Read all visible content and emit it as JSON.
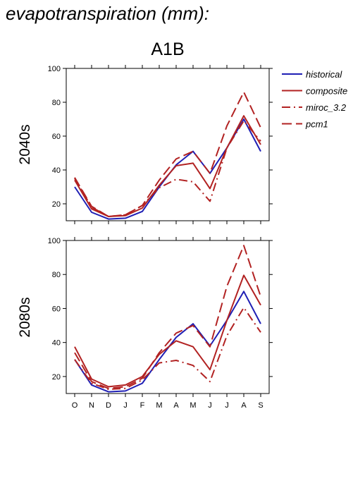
{
  "header": {
    "title": "evapotranspiration (mm):",
    "scenario": "A1B"
  },
  "colors": {
    "historical": "#1f1fb4",
    "model": "#b22222"
  },
  "chart_data": [
    {
      "type": "line",
      "panel_label": "2040s",
      "categories": [
        "O",
        "N",
        "D",
        "J",
        "F",
        "M",
        "A",
        "M",
        "J",
        "J",
        "A",
        "S"
      ],
      "ylim": [
        10,
        100
      ],
      "yticks": [
        20,
        40,
        60,
        80,
        100
      ],
      "series": [
        {
          "name": "historical",
          "style": "solid",
          "color": "#1f1fb4",
          "values": [
            30,
            15,
            11,
            11.5,
            15.5,
            30,
            43,
            51,
            38,
            53,
            70,
            51
          ]
        },
        {
          "name": "composite",
          "style": "solid",
          "color": "#b22222",
          "values": [
            34,
            17,
            12.5,
            13,
            17.5,
            31,
            42.5,
            44,
            29,
            53,
            72,
            55
          ]
        },
        {
          "name": "miroc_3.2",
          "style": "dashdot",
          "color": "#b22222",
          "values": [
            35,
            18,
            12.5,
            13.5,
            19,
            29.5,
            34.5,
            33,
            21.5,
            53,
            69,
            57
          ]
        },
        {
          "name": "pcm1",
          "style": "dash",
          "color": "#b22222",
          "values": [
            35.5,
            18.5,
            12.5,
            13.5,
            19,
            34,
            46.5,
            51,
            38,
            66,
            86,
            65
          ]
        }
      ]
    },
    {
      "type": "line",
      "panel_label": "2080s",
      "categories": [
        "O",
        "N",
        "D",
        "J",
        "F",
        "M",
        "A",
        "M",
        "J",
        "J",
        "A",
        "S"
      ],
      "ylim": [
        10,
        100
      ],
      "yticks": [
        20,
        40,
        60,
        80,
        100
      ],
      "series": [
        {
          "name": "historical",
          "style": "solid",
          "color": "#1f1fb4",
          "values": [
            30,
            15,
            11,
            11.5,
            16,
            30,
            43,
            51,
            38,
            53,
            70,
            51
          ]
        },
        {
          "name": "composite",
          "style": "solid",
          "color": "#b22222",
          "values": [
            37.5,
            18.5,
            14,
            15,
            20,
            33,
            41,
            37.5,
            24,
            53,
            79.5,
            62
          ]
        },
        {
          "name": "miroc_3.2",
          "style": "dashdot",
          "color": "#b22222",
          "values": [
            30,
            16,
            12.5,
            13,
            18,
            28,
            29.5,
            26.5,
            17,
            44,
            60.5,
            46
          ]
        },
        {
          "name": "pcm1",
          "style": "dash",
          "color": "#b22222",
          "values": [
            34,
            17,
            13,
            14,
            19,
            34,
            45.5,
            50,
            37.5,
            73,
            97,
            67
          ]
        }
      ]
    }
  ],
  "legend": {
    "placement": "right",
    "entries": [
      {
        "label": "historical",
        "style": "solid",
        "color": "#1f1fb4"
      },
      {
        "label": "composite",
        "style": "solid",
        "color": "#b22222"
      },
      {
        "label": "miroc_3.2",
        "style": "dashdot",
        "color": "#b22222"
      },
      {
        "label": "pcm1",
        "style": "dash",
        "color": "#b22222"
      }
    ]
  }
}
